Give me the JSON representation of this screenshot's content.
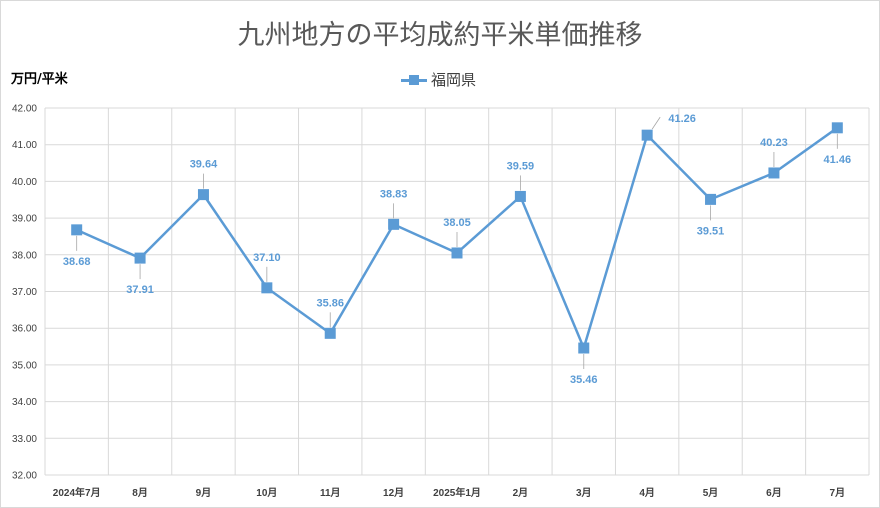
{
  "chart_data": {
    "type": "line",
    "title": "九州地方の平均成約平米単価推移",
    "ylabel": "万円/平米",
    "xlabel": "",
    "categories": [
      "2024年7月",
      "8月",
      "9月",
      "10月",
      "11月",
      "12月",
      "2025年1月",
      "2月",
      "3月",
      "4月",
      "5月",
      "6月",
      "7月"
    ],
    "series": [
      {
        "name": "福岡県",
        "values": [
          38.68,
          37.91,
          39.64,
          37.1,
          35.86,
          38.83,
          38.05,
          39.59,
          35.46,
          41.26,
          39.51,
          40.23,
          41.46
        ],
        "value_labels": [
          "38.68",
          "37.91",
          "39.64",
          "37.10",
          "35.86",
          "38.83",
          "38.05",
          "39.59",
          "35.46",
          "41.26",
          "39.51",
          "40.23",
          "41.46"
        ],
        "label_positions": [
          "below",
          "below",
          "above",
          "above",
          "above",
          "above",
          "above",
          "above",
          "below",
          "above-right",
          "below",
          "above",
          "below"
        ]
      }
    ],
    "ylim": [
      32,
      42
    ],
    "yticks": [
      "32.00",
      "33.00",
      "34.00",
      "35.00",
      "36.00",
      "37.00",
      "38.00",
      "39.00",
      "40.00",
      "41.00",
      "42.00"
    ],
    "grid": true,
    "legend_position": "top-center",
    "color": "#5b9bd5"
  }
}
